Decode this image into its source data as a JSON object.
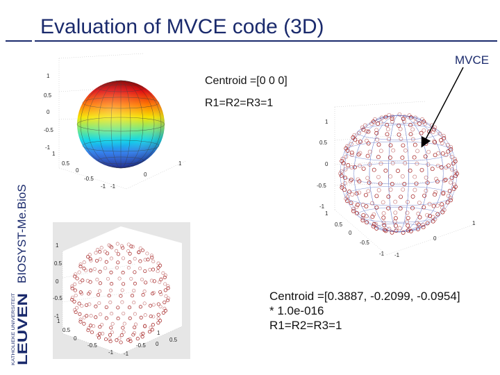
{
  "slide": {
    "title": "Evaluation of MVCE code (3D)",
    "sidebar_label": "BIOSYST-Me.BioS",
    "logo": {
      "text": "LEUVEN",
      "subtext": "KATHOLIEKE UNIVERSITEIT"
    }
  },
  "annotations": {
    "mvce_label": "MVCE",
    "centroid_top": "Centroid  =[0 0 0]",
    "radius_top": "R1=R2=R3=1",
    "centroid_bottom_line1": "Centroid  =[0.3887, -0.2099, -0.0954]",
    "centroid_bottom_line2": "* 1.0e-016",
    "radius_bottom": "R1=R2=R3=1"
  },
  "plots": {
    "surface": {
      "z_ticks": [
        "1",
        "0.5",
        "0",
        "-0.5",
        "-1"
      ],
      "x_ticks": [
        "1",
        "0.5",
        "0",
        "-0.5",
        "-1"
      ],
      "y_ticks": [
        "1",
        "0",
        "-1"
      ]
    },
    "mvce": {
      "z_ticks": [
        "1",
        "0.5",
        "0",
        "-0.5",
        "-1"
      ],
      "x_ticks": [
        "1",
        "0.5",
        "0",
        "-0.5",
        "-1"
      ],
      "y_ticks": [
        "1",
        "0",
        "-1"
      ]
    },
    "points": {
      "z_ticks": [
        "1",
        "0.5",
        "0",
        "-0.5",
        "-1"
      ],
      "x_ticks": [
        "1",
        "0.5",
        "0",
        "-0.5",
        "-1"
      ],
      "y_ticks": [
        "1",
        "0.5",
        "0",
        "-0.5",
        "-1"
      ]
    }
  },
  "colors": {
    "title": "#1a2a6c",
    "arrow": "#000000",
    "points": "#a01818",
    "surface_colormap": "jet"
  }
}
